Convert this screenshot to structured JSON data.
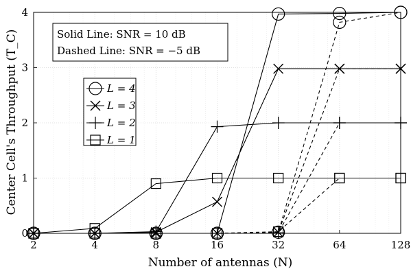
{
  "chart_data": {
    "type": "line",
    "x_scale": "log2",
    "grid": true,
    "categories": [
      "2",
      "4",
      "8",
      "16",
      "32",
      "64",
      "128"
    ],
    "x": [
      2,
      4,
      8,
      16,
      32,
      64,
      128
    ],
    "xlabel": "Number of antennas (N)",
    "ylabel": "Center Cell's Throughput (T_C)",
    "yticks": [
      "0",
      "1",
      "2",
      "3",
      "4"
    ],
    "ylim": [
      0,
      4
    ],
    "annotation": {
      "line1": "Solid Line: SNR = 10 dB",
      "line2": "Dashed Line: SNR = −5 dB"
    },
    "legend_position": "center-left",
    "series": [
      {
        "name": "L = 4",
        "marker": "circle",
        "solid": [
          0,
          0,
          0,
          0,
          3.97,
          3.98,
          4.0
        ],
        "dashed": [
          0,
          0,
          0,
          0,
          0.02,
          3.82,
          4.0
        ]
      },
      {
        "name": "L = 3",
        "marker": "x",
        "solid": [
          0,
          0,
          0.02,
          0.57,
          2.98,
          2.98,
          2.98
        ],
        "dashed": [
          0,
          0,
          0,
          0,
          0.02,
          2.98,
          2.98
        ]
      },
      {
        "name": "L = 2",
        "marker": "plus",
        "solid": [
          0,
          0,
          0.03,
          1.93,
          2.0,
          2.0,
          2.0
        ],
        "dashed": [
          0,
          0,
          0,
          0,
          0.01,
          2.0,
          2.0
        ]
      },
      {
        "name": "L = 1",
        "marker": "square",
        "solid": [
          0,
          0.09,
          0.9,
          1.0,
          1.0,
          1.0,
          1.0
        ],
        "dashed": [
          0,
          0,
          0,
          0,
          0.03,
          1.0,
          1.0
        ]
      }
    ]
  }
}
